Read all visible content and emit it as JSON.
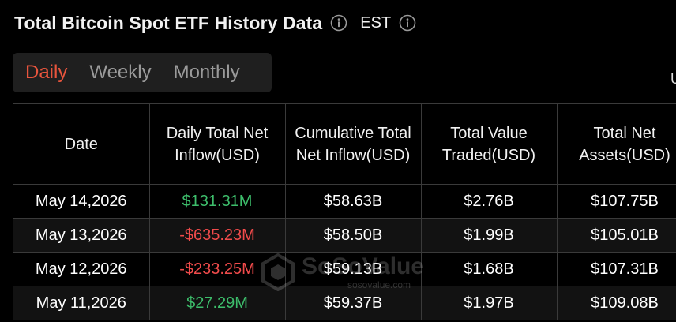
{
  "header": {
    "title": "Total Bitcoin Spot ETF History Data",
    "timezone": "EST"
  },
  "icons": {
    "title_info": "info-icon",
    "timezone_info": "info-icon"
  },
  "tabs": [
    {
      "label": "Daily",
      "active": true
    },
    {
      "label": "Weekly",
      "active": false
    },
    {
      "label": "Monthly",
      "active": false
    }
  ],
  "edge_text": "U",
  "colors": {
    "accent": "#e8553d",
    "positive": "#3dbd6b",
    "negative": "#f04b4b",
    "background": "#000000",
    "tab_bar": "#1f1f1f"
  },
  "table": {
    "columns": [
      "Date",
      "Daily Total Net Inflow(USD)",
      "Cumulative Total Net Inflow(USD)",
      "Total Value Traded(USD)",
      "Total Net Assets(USD)"
    ],
    "rows": [
      {
        "date": "May 14,2026",
        "daily_inflow": "$131.31M",
        "inflow_sign": "positive",
        "cumulative": "$58.63B",
        "value_traded": "$2.76B",
        "net_assets": "$107.75B"
      },
      {
        "date": "May 13,2026",
        "daily_inflow": "-$635.23M",
        "inflow_sign": "negative",
        "cumulative": "$58.50B",
        "value_traded": "$1.99B",
        "net_assets": "$105.01B"
      },
      {
        "date": "May 12,2026",
        "daily_inflow": "-$233.25M",
        "inflow_sign": "negative",
        "cumulative": "$59.13B",
        "value_traded": "$1.68B",
        "net_assets": "$107.31B"
      },
      {
        "date": "May 11,2026",
        "daily_inflow": "$27.29M",
        "inflow_sign": "positive",
        "cumulative": "$59.37B",
        "value_traded": "$1.97B",
        "net_assets": "$109.08B"
      }
    ]
  },
  "watermark": {
    "brand": "SoSoValue",
    "url": "sosovalue.com"
  }
}
